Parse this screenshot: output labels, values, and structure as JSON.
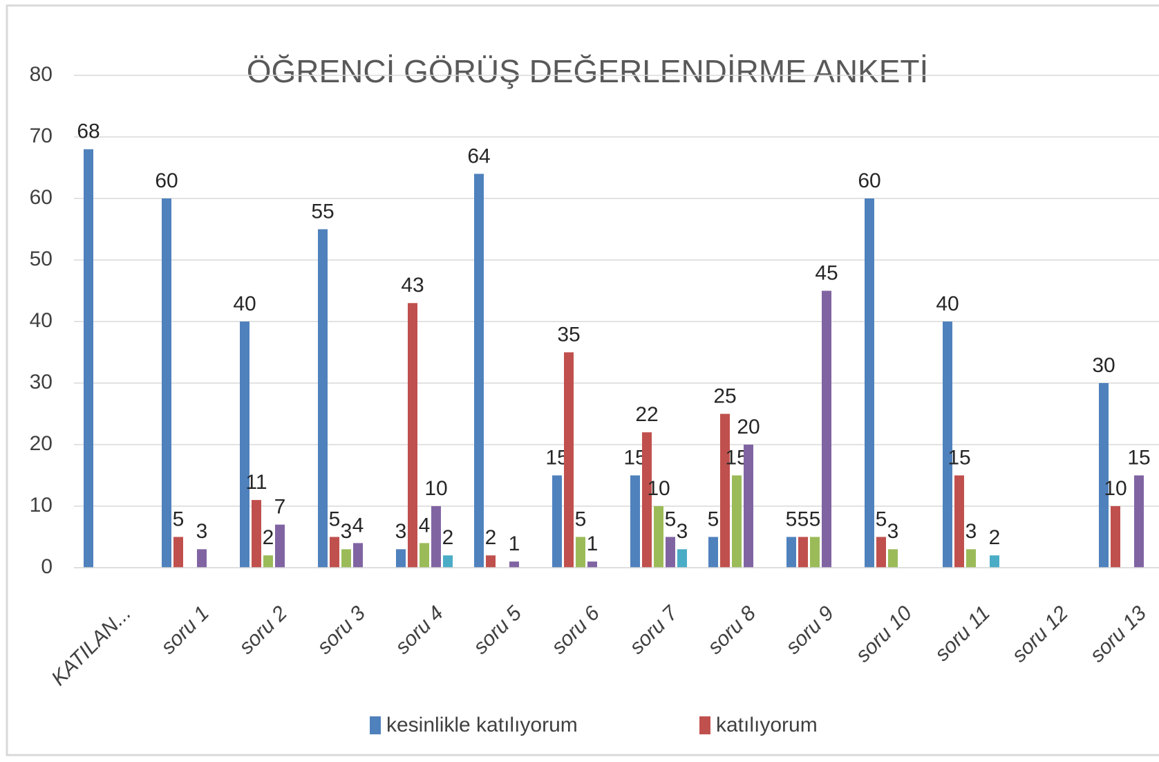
{
  "chart_data": {
    "type": "bar",
    "title": "ÖĞRENCİ GÖRÜŞ DEĞERLENDİRME ANKETİ",
    "categories": [
      "KATILAN...",
      "soru 1",
      "soru 2",
      "soru 3",
      "soru 4",
      "soru 5",
      "soru 6",
      "soru 7",
      "soru 8",
      "soru 9",
      "soru 10",
      "soru 11",
      "soru 12",
      "soru 13"
    ],
    "series": [
      {
        "name": "kesinlikle katılıyorum",
        "color": "#4f81bd",
        "values": [
          68,
          60,
          40,
          55,
          3,
          64,
          15,
          15,
          5,
          5,
          60,
          40,
          null,
          30
        ]
      },
      {
        "name": "katılıyorum",
        "color": "#c0504d",
        "values": [
          null,
          5,
          11,
          5,
          43,
          2,
          35,
          22,
          25,
          5,
          5,
          15,
          null,
          10
        ]
      },
      {
        "color": "#9bbb59",
        "values": [
          null,
          null,
          2,
          3,
          4,
          null,
          5,
          10,
          15,
          5,
          3,
          3,
          null,
          null
        ]
      },
      {
        "color": "#8064a2",
        "values": [
          null,
          3,
          7,
          4,
          10,
          1,
          1,
          5,
          20,
          45,
          null,
          null,
          null,
          15
        ]
      },
      {
        "color": "#4bacc6",
        "values": [
          null,
          null,
          null,
          null,
          2,
          null,
          null,
          3,
          null,
          null,
          null,
          2,
          null,
          null
        ]
      }
    ],
    "ylim": [
      0,
      80
    ],
    "yticks": [
      0,
      10,
      20,
      30,
      40,
      50,
      60,
      70,
      80
    ],
    "grid": true,
    "legend": "bottom"
  }
}
